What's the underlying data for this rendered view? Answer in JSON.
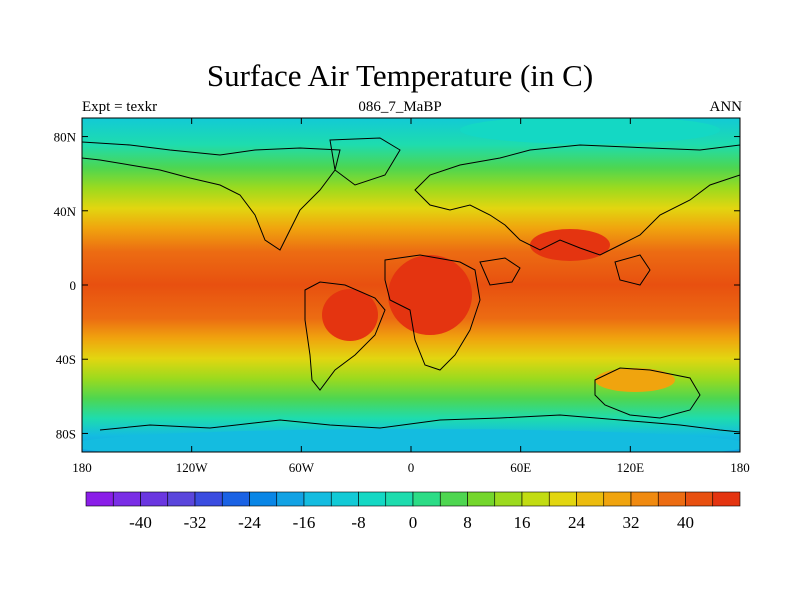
{
  "title": "Surface Air Temperature (in C)",
  "subtitle_left": "Expt = texkr",
  "subtitle_center": "086_7_MaBP",
  "subtitle_right": "ANN",
  "map": {
    "lon_range": [
      -180,
      180
    ],
    "lat_range": [
      -90,
      90
    ],
    "x_ticks": [
      {
        "lon": -180,
        "label": "180"
      },
      {
        "lon": -120,
        "label": "120W"
      },
      {
        "lon": -60,
        "label": "60W"
      },
      {
        "lon": 0,
        "label": "0"
      },
      {
        "lon": 60,
        "label": "60E"
      },
      {
        "lon": 120,
        "label": "120E"
      },
      {
        "lon": 180,
        "label": "180"
      }
    ],
    "y_ticks": [
      {
        "lat": 80,
        "label": "80N"
      },
      {
        "lat": 40,
        "label": "40N"
      },
      {
        "lat": 0,
        "label": "0"
      },
      {
        "lat": -40,
        "label": "40S"
      },
      {
        "lat": -80,
        "label": "80S"
      }
    ]
  },
  "colorbar": {
    "min": -48,
    "max": 48,
    "step": 4,
    "colors": [
      "#8a1ee8",
      "#7a2ee6",
      "#6a36e0",
      "#5a46dc",
      "#3a4ce0",
      "#1a62e4",
      "#0a86e6",
      "#12a2e4",
      "#14bce0",
      "#12cad6",
      "#14d8c4",
      "#1edcae",
      "#2cdc86",
      "#4ed650",
      "#74d62c",
      "#9cda1e",
      "#c2dc12",
      "#e2d610",
      "#ecbc0e",
      "#f0a40e",
      "#f08a10",
      "#ec6c12",
      "#e85010",
      "#e43410"
    ],
    "labels": [
      {
        "value": -40,
        "text": "-40"
      },
      {
        "value": -32,
        "text": "-32"
      },
      {
        "value": -24,
        "text": "-24"
      },
      {
        "value": -16,
        "text": "-16"
      },
      {
        "value": -8,
        "text": "-8"
      },
      {
        "value": 0,
        "text": "0"
      },
      {
        "value": 8,
        "text": "8"
      },
      {
        "value": 16,
        "text": "16"
      },
      {
        "value": 24,
        "text": "24"
      },
      {
        "value": 32,
        "text": "32"
      },
      {
        "value": 40,
        "text": "40"
      }
    ]
  }
}
